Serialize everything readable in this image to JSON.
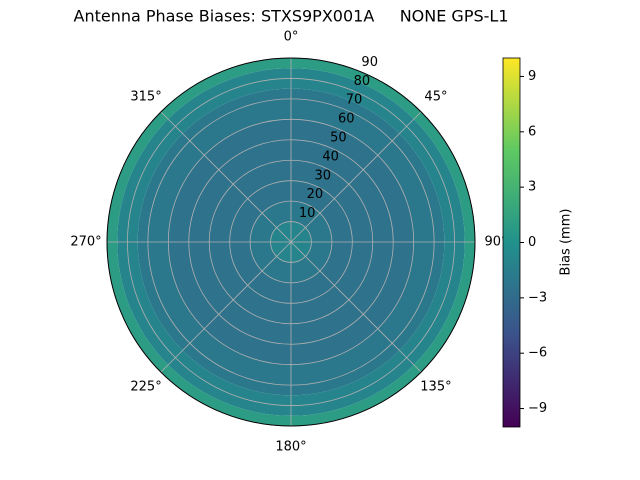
{
  "chart_data": {
    "type": "polar_contour",
    "title": "Antenna Phase Biases: STXS9PX001A     NONE GPS-L1",
    "r_edges": [
      0,
      10,
      20,
      60,
      75,
      85,
      90
    ],
    "values": [
      -1,
      -2,
      -2.5,
      -2,
      -1,
      1
    ],
    "rlim": [
      0,
      90
    ],
    "rticks": [
      10,
      20,
      30,
      40,
      50,
      60,
      70,
      80,
      90
    ],
    "thetaticks": [
      {
        "value": 0,
        "label": "0°"
      },
      {
        "value": 45,
        "label": "45°"
      },
      {
        "value": 90,
        "label": "90°"
      },
      {
        "value": 135,
        "label": "135°"
      },
      {
        "value": 180,
        "label": "180°"
      },
      {
        "value": 225,
        "label": "225°"
      },
      {
        "value": 270,
        "label": "270°"
      },
      {
        "value": 315,
        "label": "315°"
      }
    ],
    "grid": true,
    "colormap": "viridis",
    "colorbar_label": "Bias (mm)",
    "clim": [
      -10,
      10
    ],
    "cticks": [
      {
        "value": -9,
        "label": "−9"
      },
      {
        "value": -6,
        "label": "−6"
      },
      {
        "value": -3,
        "label": "−3"
      },
      0,
      3,
      6,
      9
    ]
  }
}
